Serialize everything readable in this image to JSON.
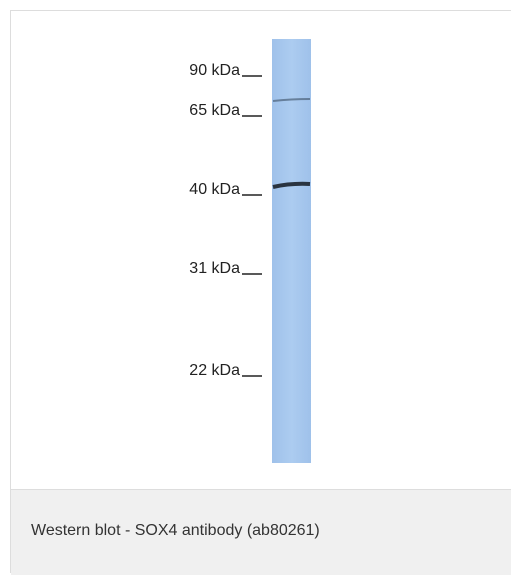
{
  "markers": [
    {
      "label": "90 kDa"
    },
    {
      "label": "65 kDa"
    },
    {
      "label": "40 kDa"
    },
    {
      "label": "31 kDa"
    },
    {
      "label": "22 kDa"
    }
  ],
  "caption": "Western blot - SOX4 antibody (ab80261)"
}
